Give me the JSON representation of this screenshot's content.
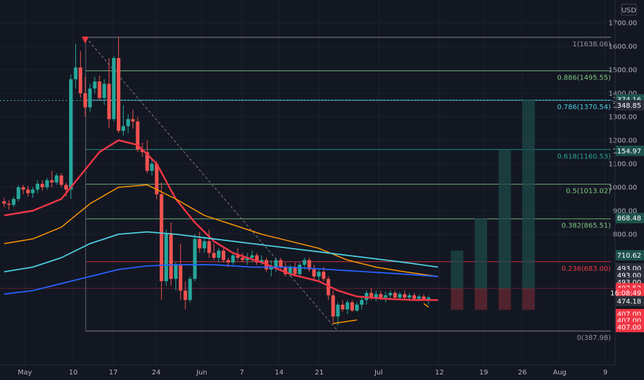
{
  "currency_label": "USD",
  "chart_data": {
    "type": "candlestick",
    "y_axis": {
      "ticks": [
        1700,
        1600,
        1500,
        1400,
        1300,
        1200,
        1100,
        1000,
        900,
        800
      ],
      "tick_labels": [
        "1700.00",
        "1600.00",
        "1500.00",
        "1400.00",
        "1300.00",
        "1200.00",
        "1100.00",
        "1000.00",
        "900.00",
        "800.00"
      ],
      "range_hint": [
        380,
        1730
      ]
    },
    "x_axis": {
      "labels": [
        "May",
        "10",
        "17",
        "24",
        "Jun",
        "7",
        "14",
        "21",
        "Jul",
        "12",
        "19",
        "26",
        "Aug",
        "9"
      ]
    },
    "fib_levels": [
      {
        "ratio": "1",
        "value": 1638.06,
        "label": "1(1638.06)",
        "color": "#9598a1"
      },
      {
        "ratio": "0.886",
        "value": 1495.55,
        "label": "0.886(1495.55)",
        "color": "#81c784"
      },
      {
        "ratio": "0.786",
        "value": 1370.54,
        "label": "0.786(1370.54)",
        "color": "#4dd0e1"
      },
      {
        "ratio": "0.618",
        "value": 1160.53,
        "label": "0.618(1160.53)",
        "color": "#26a69a"
      },
      {
        "ratio": "0.5",
        "value": 1013.02,
        "label": "0.5(1013.02)",
        "color": "#81c784"
      },
      {
        "ratio": "0.382",
        "value": 865.51,
        "label": "0.382(865.51)",
        "color": "#81c784"
      },
      {
        "ratio": "0.236",
        "value": 683.0,
        "label": "0.236(683.00)",
        "color": "#f23645"
      },
      {
        "ratio": "0",
        "value": 387.98,
        "label": "0(387.98)",
        "color": "#9598a1"
      }
    ],
    "price_tags": [
      {
        "label": "1374.16",
        "value": 1374.16,
        "color": "#1e524c"
      },
      {
        "label": "1348.85",
        "value": 1348.85,
        "color": "#2a2e39"
      },
      {
        "label": "1154.97",
        "value": 1154.97,
        "color": "#1e524c"
      },
      {
        "label": "868.48",
        "value": 868.48,
        "color": "#1e524c"
      },
      {
        "label": "710.62",
        "value": 710.62,
        "color": "#1e524c"
      },
      {
        "label": "493.00",
        "value": 655,
        "color": "#2a2e39"
      },
      {
        "label": "493.00",
        "value": 625,
        "color": "#2a2e39"
      },
      {
        "label": "493.00",
        "value": 595,
        "color": "#2a2e39"
      },
      {
        "label": "492.52",
        "value": 570,
        "color": "#f23645"
      },
      {
        "label": "16:08:49",
        "value": 550,
        "color": "#f23645"
      },
      {
        "label": "474.18",
        "value": 515,
        "color": "#2a2e39"
      },
      {
        "label": "407.00",
        "value": 460,
        "color": "#f23645"
      },
      {
        "label": "407.00",
        "value": 432,
        "color": "#f23645"
      },
      {
        "label": "407.00",
        "value": 405,
        "color": "#f23645"
      }
    ],
    "candles": [
      [
        940,
        955,
        915,
        930
      ],
      [
        930,
        945,
        905,
        925
      ],
      [
        925,
        960,
        915,
        950
      ],
      [
        950,
        1010,
        940,
        1000
      ],
      [
        1000,
        1010,
        970,
        990
      ],
      [
        990,
        1005,
        960,
        975
      ],
      [
        975,
        1000,
        955,
        990
      ],
      [
        990,
        1030,
        975,
        1015
      ],
      [
        1015,
        1030,
        985,
        1000
      ],
      [
        1000,
        1040,
        990,
        1030
      ],
      [
        1030,
        1070,
        1000,
        1020
      ],
      [
        1020,
        1060,
        1010,
        1050
      ],
      [
        1050,
        1060,
        1000,
        1010
      ],
      [
        1010,
        1020,
        960,
        990
      ],
      [
        990,
        1480,
        950,
        1460
      ],
      [
        1460,
        1610,
        1420,
        1510
      ],
      [
        1510,
        1580,
        1380,
        1400
      ],
      [
        1400,
        1470,
        1300,
        1340
      ],
      [
        1340,
        1440,
        1320,
        1420
      ],
      [
        1420,
        1470,
        1400,
        1450
      ],
      [
        1450,
        1475,
        1370,
        1380
      ],
      [
        1380,
        1460,
        1350,
        1440
      ],
      [
        1440,
        1550,
        1250,
        1290
      ],
      [
        1290,
        1560,
        1280,
        1550
      ],
      [
        1550,
        1640,
        1230,
        1240
      ],
      [
        1240,
        1350,
        1220,
        1260
      ],
      [
        1260,
        1310,
        1230,
        1290
      ],
      [
        1290,
        1330,
        1250,
        1280
      ],
      [
        1280,
        1300,
        1150,
        1160
      ],
      [
        1160,
        1190,
        1130,
        1150
      ],
      [
        1150,
        1200,
        1060,
        1070
      ],
      [
        1070,
        1120,
        1050,
        1100
      ],
      [
        1100,
        1110,
        950,
        970
      ],
      [
        970,
        1020,
        520,
        600
      ],
      [
        600,
        820,
        580,
        800
      ],
      [
        800,
        850,
        580,
        610
      ],
      [
        610,
        680,
        560,
        670
      ],
      [
        670,
        760,
        520,
        560
      ],
      [
        560,
        600,
        480,
        520
      ],
      [
        520,
        620,
        510,
        610
      ],
      [
        610,
        800,
        600,
        780
      ],
      [
        780,
        810,
        720,
        740
      ],
      [
        740,
        790,
        720,
        770
      ],
      [
        770,
        820,
        700,
        720
      ],
      [
        720,
        760,
        690,
        700
      ],
      [
        700,
        740,
        680,
        730
      ],
      [
        730,
        740,
        680,
        690
      ],
      [
        690,
        700,
        660,
        680
      ],
      [
        680,
        720,
        670,
        710
      ],
      [
        710,
        740,
        690,
        700
      ],
      [
        700,
        720,
        680,
        690
      ],
      [
        690,
        720,
        670,
        700
      ],
      [
        700,
        730,
        680,
        710
      ],
      [
        710,
        720,
        670,
        680
      ],
      [
        680,
        710,
        670,
        690
      ],
      [
        690,
        700,
        640,
        650
      ],
      [
        650,
        690,
        620,
        660
      ],
      [
        660,
        700,
        640,
        690
      ],
      [
        690,
        700,
        650,
        660
      ],
      [
        660,
        680,
        620,
        630
      ],
      [
        630,
        670,
        620,
        660
      ],
      [
        660,
        680,
        620,
        630
      ],
      [
        630,
        680,
        620,
        670
      ],
      [
        670,
        700,
        650,
        690
      ],
      [
        690,
        700,
        640,
        650
      ],
      [
        650,
        670,
        610,
        620
      ],
      [
        620,
        650,
        600,
        640
      ],
      [
        640,
        660,
        600,
        610
      ],
      [
        610,
        620,
        520,
        540
      ],
      [
        540,
        560,
        420,
        450
      ],
      [
        450,
        510,
        410,
        500
      ],
      [
        500,
        520,
        470,
        480
      ],
      [
        480,
        520,
        460,
        510
      ],
      [
        510,
        520,
        470,
        475
      ],
      [
        475,
        510,
        470,
        500
      ],
      [
        500,
        530,
        480,
        520
      ],
      [
        520,
        560,
        500,
        550
      ],
      [
        550,
        570,
        520,
        530
      ],
      [
        530,
        560,
        515,
        545
      ],
      [
        545,
        560,
        520,
        530
      ],
      [
        530,
        555,
        510,
        540
      ],
      [
        540,
        560,
        520,
        550
      ],
      [
        550,
        560,
        525,
        530
      ],
      [
        530,
        555,
        520,
        545
      ],
      [
        545,
        560,
        520,
        530
      ],
      [
        530,
        550,
        515,
        540
      ],
      [
        540,
        550,
        520,
        525
      ],
      [
        525,
        545,
        515,
        535
      ],
      [
        535,
        545,
        515,
        520
      ],
      [
        520,
        540,
        500,
        530
      ]
    ],
    "moving_averages": [
      {
        "color": "#f23645",
        "width": 2.5,
        "points": [
          [
            0,
            880
          ],
          [
            6,
            900
          ],
          [
            12,
            950
          ],
          [
            16,
            1050
          ],
          [
            20,
            1150
          ],
          [
            24,
            1200
          ],
          [
            28,
            1180
          ],
          [
            32,
            1100
          ],
          [
            36,
            950
          ],
          [
            40,
            850
          ],
          [
            44,
            770
          ],
          [
            48,
            720
          ],
          [
            54,
            680
          ],
          [
            60,
            630
          ],
          [
            66,
            600
          ],
          [
            70,
            560
          ],
          [
            74,
            535
          ],
          [
            80,
            525
          ],
          [
            86,
            520
          ],
          [
            91,
            520
          ]
        ]
      },
      {
        "color": "#ff9800",
        "width": 1.5,
        "points": [
          [
            0,
            760
          ],
          [
            6,
            780
          ],
          [
            12,
            830
          ],
          [
            18,
            930
          ],
          [
            24,
            1000
          ],
          [
            30,
            1010
          ],
          [
            36,
            950
          ],
          [
            42,
            880
          ],
          [
            48,
            840
          ],
          [
            54,
            800
          ],
          [
            60,
            770
          ],
          [
            66,
            740
          ],
          [
            72,
            690
          ],
          [
            78,
            660
          ],
          [
            84,
            640
          ],
          [
            91,
            620
          ]
        ]
      },
      {
        "color": "#4dd0e1",
        "width": 1.8,
        "points": [
          [
            0,
            640
          ],
          [
            6,
            660
          ],
          [
            12,
            700
          ],
          [
            18,
            760
          ],
          [
            24,
            800
          ],
          [
            30,
            810
          ],
          [
            36,
            800
          ],
          [
            44,
            780
          ],
          [
            52,
            760
          ],
          [
            60,
            740
          ],
          [
            68,
            720
          ],
          [
            76,
            700
          ],
          [
            84,
            680
          ],
          [
            91,
            660
          ]
        ]
      },
      {
        "color": "#2962ff",
        "width": 1.8,
        "points": [
          [
            0,
            545
          ],
          [
            6,
            560
          ],
          [
            12,
            590
          ],
          [
            18,
            620
          ],
          [
            24,
            650
          ],
          [
            30,
            665
          ],
          [
            36,
            670
          ],
          [
            44,
            670
          ],
          [
            52,
            660
          ],
          [
            60,
            660
          ],
          [
            68,
            650
          ],
          [
            76,
            640
          ],
          [
            84,
            630
          ],
          [
            91,
            620
          ]
        ]
      }
    ],
    "projection_bars": [
      {
        "x": 95,
        "top": 730,
        "bottom": 560
      },
      {
        "x": 100,
        "top": 868,
        "bottom": 560
      },
      {
        "x": 105,
        "top": 1158,
        "bottom": 560
      },
      {
        "x": 110,
        "top": 1374,
        "bottom": 560
      }
    ],
    "projection_base": {
      "top": 570,
      "bottom": 478
    },
    "fib_anchor": {
      "start_index": 18,
      "high": 1638.06,
      "end_index": 70,
      "low": 387.98
    },
    "current_price_line": 570,
    "dotted_line_value": 1370.54
  }
}
